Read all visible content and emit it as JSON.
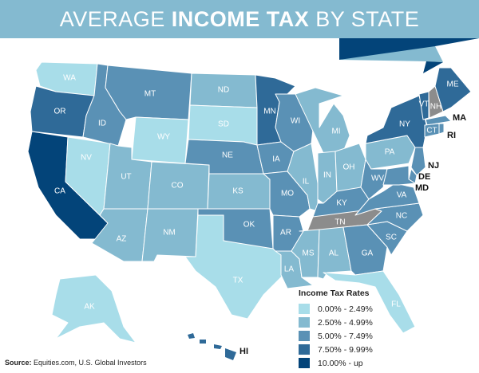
{
  "title": {
    "pre": "AVERAGE ",
    "bold": "INCOME TAX",
    "post": " BY STATE"
  },
  "colors": {
    "tier0": "#a8dde9",
    "tier1": "#84bad0",
    "tier2": "#5a91b5",
    "tier3": "#2f6a98",
    "tier4": "#034479",
    "no_data": "#8c8c8c",
    "banner": "#84bad0"
  },
  "states": [
    {
      "id": "WA",
      "tier": 0
    },
    {
      "id": "OR",
      "tier": 3
    },
    {
      "id": "CA",
      "tier": 4
    },
    {
      "id": "NV",
      "tier": 0
    },
    {
      "id": "ID",
      "tier": 2
    },
    {
      "id": "MT",
      "tier": 2
    },
    {
      "id": "WY",
      "tier": 0
    },
    {
      "id": "UT",
      "tier": 1
    },
    {
      "id": "CO",
      "tier": 1
    },
    {
      "id": "AZ",
      "tier": 1
    },
    {
      "id": "NM",
      "tier": 1
    },
    {
      "id": "ND",
      "tier": 1
    },
    {
      "id": "SD",
      "tier": 0
    },
    {
      "id": "NE",
      "tier": 2
    },
    {
      "id": "KS",
      "tier": 1
    },
    {
      "id": "OK",
      "tier": 2
    },
    {
      "id": "TX",
      "tier": 0
    },
    {
      "id": "MN",
      "tier": 3
    },
    {
      "id": "IA",
      "tier": 2
    },
    {
      "id": "MO",
      "tier": 2
    },
    {
      "id": "AR",
      "tier": 2
    },
    {
      "id": "LA",
      "tier": 1
    },
    {
      "id": "WI",
      "tier": 2
    },
    {
      "id": "IL",
      "tier": 1
    },
    {
      "id": "MI",
      "tier": 1
    },
    {
      "id": "IN",
      "tier": 1
    },
    {
      "id": "OH",
      "tier": 1
    },
    {
      "id": "KY",
      "tier": 2
    },
    {
      "id": "TN",
      "tier": "none"
    },
    {
      "id": "MS",
      "tier": 1
    },
    {
      "id": "AL",
      "tier": 1
    },
    {
      "id": "GA",
      "tier": 2
    },
    {
      "id": "FL",
      "tier": 0
    },
    {
      "id": "SC",
      "tier": 2
    },
    {
      "id": "NC",
      "tier": 2
    },
    {
      "id": "VA",
      "tier": 2
    },
    {
      "id": "WV",
      "tier": 2
    },
    {
      "id": "PA",
      "tier": 1
    },
    {
      "id": "NY",
      "tier": 3
    },
    {
      "id": "VT",
      "tier": 3
    },
    {
      "id": "NH",
      "tier": "none"
    },
    {
      "id": "ME",
      "tier": 3
    },
    {
      "id": "MA",
      "tier": 2
    },
    {
      "id": "CT",
      "tier": 2
    },
    {
      "id": "RI",
      "tier": 2
    },
    {
      "id": "NJ",
      "tier": 2
    },
    {
      "id": "DE",
      "tier": 2
    },
    {
      "id": "MD",
      "tier": 2
    },
    {
      "id": "AK",
      "tier": 0
    },
    {
      "id": "HI",
      "tier": 3
    }
  ],
  "legend": {
    "title": "Income Tax Rates",
    "items": [
      {
        "label": "0.00% - 2.49%",
        "color": "#a8dde9"
      },
      {
        "label": "2.50% - 4.99%",
        "color": "#84bad0"
      },
      {
        "label": "5.00% - 7.49%",
        "color": "#5a91b5"
      },
      {
        "label": "7.50% - 9.99%",
        "color": "#2f6a98"
      },
      {
        "label": "10.00% - up",
        "color": "#034479"
      }
    ]
  },
  "source": {
    "label": "Source:",
    "text": " Equities.com, U.S. Global Investors"
  }
}
